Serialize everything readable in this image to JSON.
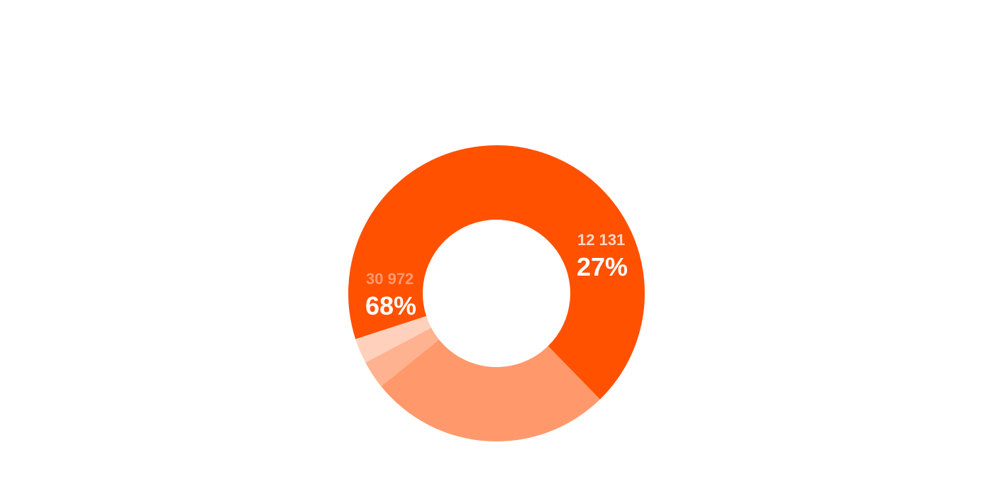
{
  "chart_data": {
    "type": "pie",
    "variant": "donut",
    "title": "",
    "legend": "none",
    "slices": [
      {
        "value": 30972,
        "value_label": "30 972",
        "percent_label": "68%",
        "color": "#FF5100",
        "label_color": "#FF9A6C"
      },
      {
        "value": 12131,
        "value_label": "12 131",
        "percent_label": "27%",
        "color": "#FF996B",
        "label_color": "#FFD7C4"
      },
      {
        "value": 1400,
        "value_label": "",
        "percent_label": "",
        "color": "#FFB28F",
        "label_color": ""
      },
      {
        "value": 1250,
        "value_label": "",
        "percent_label": "",
        "color": "#FFD1BC",
        "label_color": ""
      }
    ]
  }
}
